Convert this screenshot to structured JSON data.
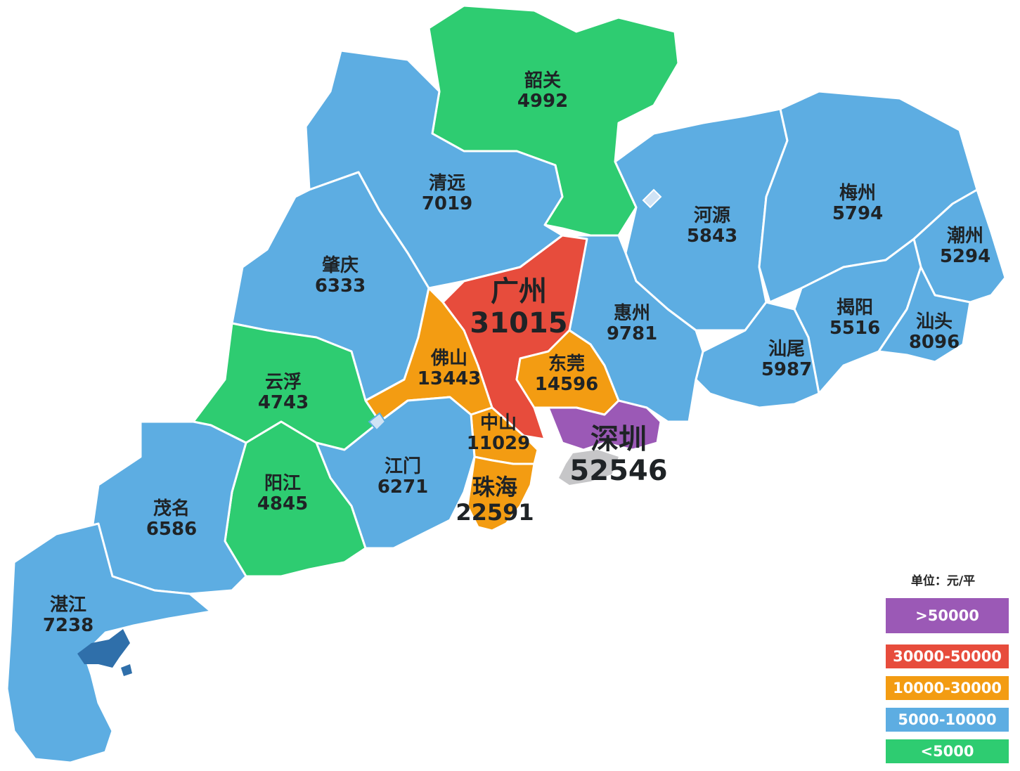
{
  "legend": {
    "title": "单位：元/平",
    "items": [
      {
        "label": ">50000",
        "color": "#9b59b6"
      },
      {
        "label": "30000-50000",
        "color": "#e74c3c"
      },
      {
        "label": "10000-30000",
        "color": "#f39c12"
      },
      {
        "label": "5000-10000",
        "color": "#5dade2"
      },
      {
        "label": "<5000",
        "color": "#2ecc71"
      }
    ]
  },
  "regions": [
    {
      "name": "韶关",
      "value": "4992",
      "color": "#2ecc71"
    },
    {
      "name": "清远",
      "value": "7019",
      "color": "#5dade2"
    },
    {
      "name": "肇庆",
      "value": "6333",
      "color": "#5dade2"
    },
    {
      "name": "河源",
      "value": "5843",
      "color": "#5dade2"
    },
    {
      "name": "梅州",
      "value": "5794",
      "color": "#5dade2"
    },
    {
      "name": "潮州",
      "value": "5294",
      "color": "#5dade2"
    },
    {
      "name": "揭阳",
      "value": "5516",
      "color": "#5dade2"
    },
    {
      "name": "汕头",
      "value": "8096",
      "color": "#5dade2"
    },
    {
      "name": "汕尾",
      "value": "5987",
      "color": "#5dade2"
    },
    {
      "name": "惠州",
      "value": "9781",
      "color": "#5dade2"
    },
    {
      "name": "广州",
      "value": "31015",
      "color": "#e74c3c"
    },
    {
      "name": "佛山",
      "value": "13443",
      "color": "#f39c12"
    },
    {
      "name": "东莞",
      "value": "14596",
      "color": "#f39c12"
    },
    {
      "name": "云浮",
      "value": "4743",
      "color": "#2ecc71"
    },
    {
      "name": "中山",
      "value": "11029",
      "color": "#f39c12"
    },
    {
      "name": "深圳",
      "value": "52546",
      "color": "#9b59b6"
    },
    {
      "name": "江门",
      "value": "6271",
      "color": "#5dade2"
    },
    {
      "name": "阳江",
      "value": "4845",
      "color": "#2ecc71"
    },
    {
      "name": "珠海",
      "value": "22591",
      "color": "#f39c12"
    },
    {
      "name": "茂名",
      "value": "6586",
      "color": "#5dade2"
    },
    {
      "name": "湛江",
      "value": "7238",
      "color": "#5dade2"
    }
  ]
}
